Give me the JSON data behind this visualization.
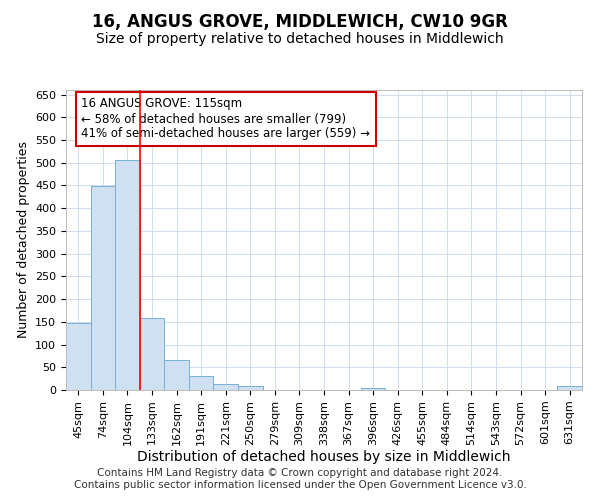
{
  "title": "16, ANGUS GROVE, MIDDLEWICH, CW10 9GR",
  "subtitle": "Size of property relative to detached houses in Middlewich",
  "xlabel": "Distribution of detached houses by size in Middlewich",
  "ylabel": "Number of detached properties",
  "categories": [
    "45sqm",
    "74sqm",
    "104sqm",
    "133sqm",
    "162sqm",
    "191sqm",
    "221sqm",
    "250sqm",
    "279sqm",
    "309sqm",
    "338sqm",
    "367sqm",
    "396sqm",
    "426sqm",
    "455sqm",
    "484sqm",
    "514sqm",
    "543sqm",
    "572sqm",
    "601sqm",
    "631sqm"
  ],
  "values": [
    147,
    449,
    506,
    158,
    65,
    30,
    13,
    8,
    0,
    0,
    0,
    0,
    5,
    0,
    0,
    0,
    0,
    0,
    0,
    0,
    8
  ],
  "bar_color": "#cfe0f0",
  "bar_edge_color": "#7aaed4",
  "redline_x": 2.5,
  "annotation_line1": "16 ANGUS GROVE: 115sqm",
  "annotation_line2": "← 58% of detached houses are smaller (799)",
  "annotation_line3": "41% of semi-detached houses are larger (559) →",
  "annotation_box_color": "#ffffff",
  "annotation_box_edge_color": "#cc0000",
  "ylim": [
    0,
    660
  ],
  "yticks": [
    0,
    50,
    100,
    150,
    200,
    250,
    300,
    350,
    400,
    450,
    500,
    550,
    600,
    650
  ],
  "footer": "Contains HM Land Registry data © Crown copyright and database right 2024.\nContains public sector information licensed under the Open Government Licence v3.0.",
  "bg_color": "#ffffff",
  "grid_color": "#c8d8ea",
  "title_fontsize": 12,
  "subtitle_fontsize": 10,
  "axis_label_fontsize": 9,
  "tick_fontsize": 8,
  "annotation_fontsize": 8.5,
  "footer_fontsize": 7.5
}
